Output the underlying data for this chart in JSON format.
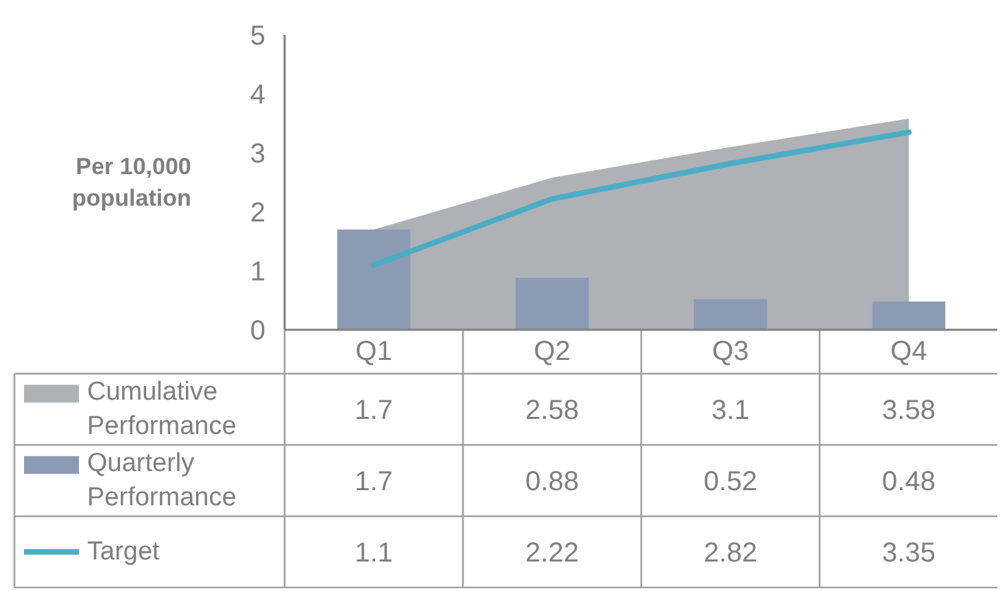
{
  "chart_data": {
    "type": "bar",
    "categories": [
      "Q1",
      "Q2",
      "Q3",
      "Q4"
    ],
    "ylabel": "Per 10,000 population",
    "ylim": [
      0,
      5
    ],
    "yticks": [
      0,
      1,
      2,
      3,
      4,
      5
    ],
    "series": [
      {
        "name": "Cumulative Performance",
        "type": "area",
        "color": "#aeb1b6",
        "values": [
          1.7,
          2.58,
          3.1,
          3.58
        ]
      },
      {
        "name": "Quarterly Performance",
        "color": "#8b9bb4",
        "values": [
          1.7,
          0.88,
          0.52,
          0.48
        ]
      },
      {
        "name": "Target",
        "type": "line",
        "color": "#4bacc6",
        "values": [
          1.1,
          2.22,
          2.82,
          3.35
        ]
      }
    ],
    "data_labels": true,
    "legend": "bottom"
  }
}
